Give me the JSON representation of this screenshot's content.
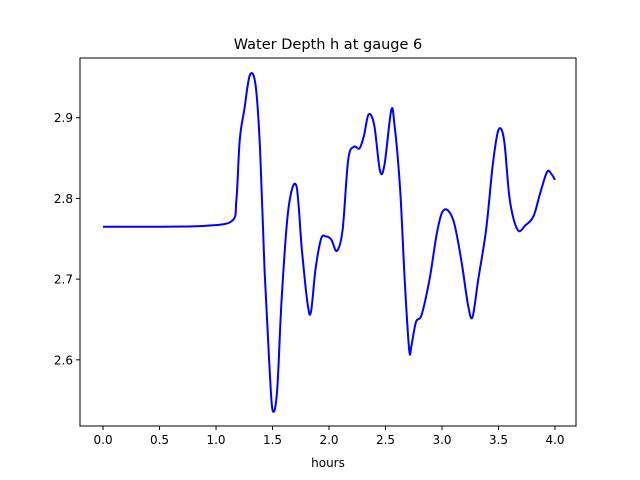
{
  "chart_data": {
    "type": "line",
    "title": "Water Depth h at gauge 6",
    "xlabel": "hours",
    "ylabel": "",
    "xlim": [
      -0.204,
      4.186
    ],
    "ylim": [
      2.518,
      2.974
    ],
    "xticks": [
      0.0,
      0.5,
      1.0,
      1.5,
      2.0,
      2.5,
      3.0,
      3.5,
      4.0
    ],
    "xtick_labels": [
      "0.0",
      "0.5",
      "1.0",
      "1.5",
      "2.0",
      "2.5",
      "3.0",
      "3.5",
      "4.0"
    ],
    "yticks": [
      2.6,
      2.7,
      2.8,
      2.9
    ],
    "ytick_labels": [
      "2.6",
      "2.7",
      "2.8",
      "2.9"
    ],
    "grid": false,
    "series": [
      {
        "name": "h",
        "color": "#0000ff",
        "x": [
          0.0,
          0.5,
          0.9,
          1.14,
          1.18,
          1.21,
          1.25,
          1.3,
          1.35,
          1.39,
          1.43,
          1.47,
          1.5,
          1.54,
          1.58,
          1.64,
          1.71,
          1.76,
          1.81,
          1.84,
          1.88,
          1.93,
          1.97,
          2.02,
          2.07,
          2.12,
          2.17,
          2.22,
          2.27,
          2.31,
          2.35,
          2.4,
          2.45,
          2.49,
          2.55,
          2.58,
          2.63,
          2.67,
          2.71,
          2.73,
          2.77,
          2.82,
          2.89,
          2.96,
          3.02,
          3.1,
          3.17,
          3.23,
          3.27,
          3.32,
          3.39,
          3.45,
          3.5,
          3.55,
          3.6,
          3.67,
          3.74,
          3.81,
          3.87,
          3.93,
          3.97,
          4.0
        ],
        "y": [
          2.765,
          2.765,
          2.766,
          2.772,
          2.798,
          2.873,
          2.91,
          2.953,
          2.94,
          2.86,
          2.71,
          2.6,
          2.538,
          2.56,
          2.674,
          2.786,
          2.816,
          2.736,
          2.67,
          2.659,
          2.712,
          2.75,
          2.753,
          2.749,
          2.735,
          2.761,
          2.848,
          2.864,
          2.862,
          2.878,
          2.904,
          2.891,
          2.835,
          2.841,
          2.909,
          2.891,
          2.81,
          2.699,
          2.612,
          2.618,
          2.647,
          2.656,
          2.7,
          2.761,
          2.786,
          2.773,
          2.724,
          2.668,
          2.653,
          2.699,
          2.761,
          2.842,
          2.885,
          2.872,
          2.798,
          2.761,
          2.767,
          2.778,
          2.807,
          2.833,
          2.83,
          2.823
        ]
      }
    ]
  }
}
